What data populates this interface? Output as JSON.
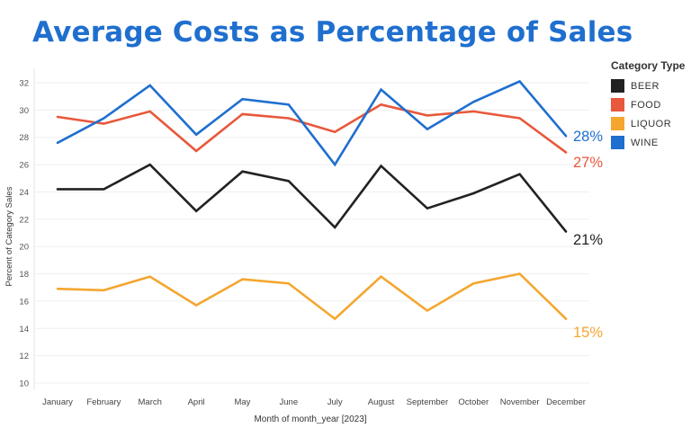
{
  "chart_data": {
    "type": "line",
    "title": "Average Costs as Percentage of Sales",
    "xlabel": "Month of month_year [2023]",
    "ylabel": "Percent of Category Sales",
    "categories": [
      "January",
      "February",
      "March",
      "April",
      "May",
      "June",
      "July",
      "August",
      "September",
      "October",
      "November",
      "December"
    ],
    "ylim": [
      10,
      33
    ],
    "yticks": [
      10,
      12,
      14,
      16,
      18,
      20,
      22,
      24,
      26,
      28,
      30,
      32
    ],
    "legend_title": "Category Type",
    "series": [
      {
        "name": "BEER",
        "color": "#222222",
        "values": [
          24.2,
          24.2,
          26.0,
          22.6,
          25.5,
          24.8,
          21.4,
          25.9,
          22.8,
          23.9,
          25.3,
          21.1
        ],
        "end_label": "21%"
      },
      {
        "name": "FOOD",
        "color": "#e8583c",
        "values": [
          29.5,
          29.0,
          29.9,
          27.0,
          29.7,
          29.4,
          28.4,
          30.4,
          29.6,
          29.9,
          29.4,
          26.9
        ],
        "end_label": "27%"
      },
      {
        "name": "LIQUOR",
        "color": "#f4a62f",
        "values": [
          16.9,
          16.8,
          17.8,
          15.7,
          17.6,
          17.3,
          14.7,
          17.8,
          15.3,
          17.3,
          18.0,
          14.7
        ],
        "end_label": "15%"
      },
      {
        "name": "WINE",
        "color": "#1f6fcf",
        "values": [
          27.6,
          29.4,
          31.8,
          28.2,
          30.8,
          30.4,
          26.0,
          31.5,
          28.6,
          30.6,
          32.1,
          28.1
        ],
        "end_label": "28%"
      }
    ]
  }
}
